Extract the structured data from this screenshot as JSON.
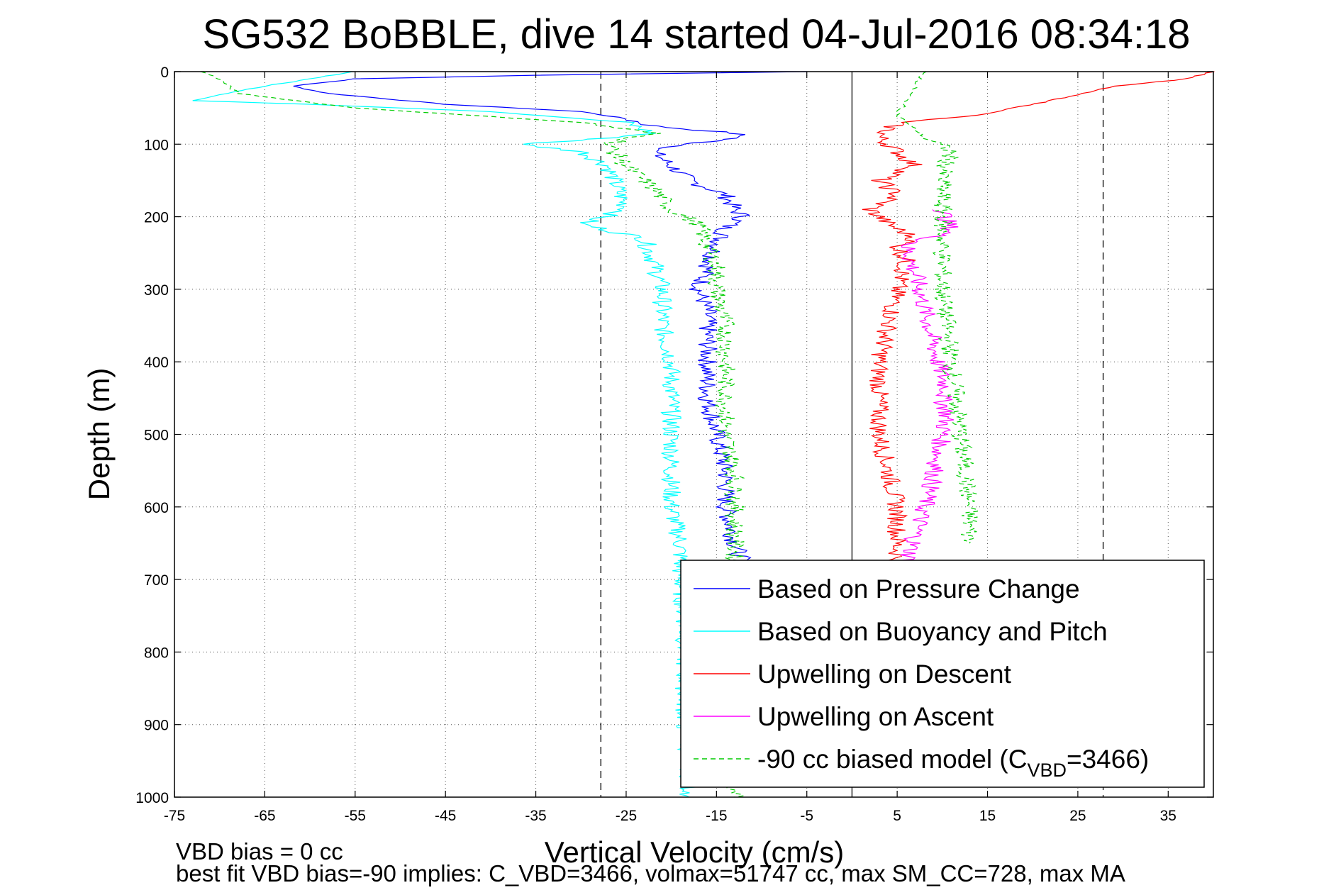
{
  "chart_data": {
    "type": "line",
    "title": "SG532 BoBBLE, dive 14 started 04-Jul-2016 08:34:18",
    "xlabel": "Vertical Velocity (cm/s)",
    "ylabel": "Depth (m)",
    "xlim": [
      -75,
      40
    ],
    "ylim": [
      0,
      1000
    ],
    "y_reversed": true,
    "grid": true,
    "legend_position": "bottom-right",
    "x_ticks": [
      "-75",
      "-65",
      "-55",
      "-45",
      "-35",
      "-25",
      "-15",
      "-5",
      "5",
      "15",
      "25",
      "35"
    ],
    "x_tick_values": [
      -75,
      -65,
      -55,
      -45,
      -35,
      -25,
      -15,
      -5,
      5,
      15,
      25,
      35
    ],
    "y_ticks": [
      "0",
      "100",
      "200",
      "300",
      "400",
      "500",
      "600",
      "700",
      "800",
      "900",
      "1000"
    ],
    "y_tick_values": [
      0,
      100,
      200,
      300,
      400,
      500,
      600,
      700,
      800,
      900,
      1000
    ],
    "vertical_refs": [
      {
        "x": -27.8,
        "style": "dashed"
      },
      {
        "x": 0,
        "style": "solid"
      },
      {
        "x": 27.8,
        "style": "dashed"
      }
    ],
    "series": [
      {
        "name": "Based on Pressure Change",
        "color": "#0000ff",
        "dash": "",
        "depth": [
          0,
          5,
          10,
          20,
          30,
          45,
          55,
          65,
          75,
          85,
          90,
          95,
          100,
          110,
          130,
          150,
          170,
          190,
          200,
          215,
          240,
          270,
          300,
          330,
          360,
          400,
          450,
          500,
          550,
          600,
          650,
          680
        ],
        "x": [
          -5,
          -35,
          -55,
          -62,
          -58,
          -45,
          -30,
          -25,
          -22,
          -13,
          -12,
          -15,
          -18,
          -22,
          -20,
          -18,
          -14,
          -13,
          -12,
          -14,
          -15,
          -16,
          -17,
          -16,
          -16,
          -16,
          -16,
          -15,
          -14,
          -14,
          -13,
          -12
        ]
      },
      {
        "name": "Based on Buoyancy and Pitch",
        "color": "#00ffff",
        "dash": "",
        "depth": [
          0,
          20,
          40,
          45,
          55,
          70,
          85,
          95,
          100,
          110,
          130,
          160,
          190,
          210,
          230,
          260,
          300,
          350,
          400,
          450,
          500,
          550,
          600,
          650,
          700,
          750,
          800,
          850,
          900,
          950,
          1000
        ],
        "x": [
          -55,
          -65,
          -73,
          -60,
          -40,
          -25,
          -22,
          -30,
          -37,
          -30,
          -27,
          -26,
          -25,
          -30,
          -23,
          -22,
          -21,
          -21,
          -20,
          -20,
          -20,
          -20,
          -20,
          -19,
          -19,
          -18.5,
          -18.5,
          -18.5,
          -18.5,
          -18,
          -18
        ]
      },
      {
        "name": "Upwelling on Descent",
        "color": "#ff0000",
        "dash": "",
        "depth": [
          0,
          10,
          20,
          40,
          60,
          70,
          90,
          110,
          130,
          150,
          170,
          190,
          210,
          230,
          240,
          260,
          300,
          350,
          400,
          450,
          500,
          550,
          600,
          650,
          700
        ],
        "x": [
          40,
          37,
          29,
          22,
          14,
          5,
          3,
          5,
          7,
          3,
          5,
          2,
          4,
          7,
          5,
          6,
          5,
          4,
          3,
          3,
          3,
          4,
          5,
          5,
          5
        ]
      },
      {
        "name": "Upwelling on Ascent",
        "color": "#ff00ff",
        "dash": "",
        "depth": [
          190,
          220,
          240,
          260,
          300,
          350,
          400,
          440,
          450,
          470,
          500,
          530,
          560,
          600,
          640,
          680
        ],
        "x": [
          10,
          11,
          6,
          6.5,
          7.5,
          8.5,
          9.5,
          10.5,
          10,
          10.5,
          10,
          9.5,
          9,
          8,
          7,
          6
        ]
      },
      {
        "name": "-90 cc biased model (C_VBD=3466)",
        "color": "#00cc00",
        "dash": "7,5",
        "depth": [
          0,
          10,
          30,
          50,
          70,
          85,
          100,
          130,
          160,
          190,
          210,
          240,
          270,
          300,
          350,
          400,
          450,
          500,
          550,
          600,
          650,
          700,
          800,
          900,
          1000
        ],
        "x": [
          -72,
          -70,
          -68,
          -55,
          -30,
          -22,
          -27,
          -25,
          -22,
          -20,
          -17,
          -16,
          -15,
          -15,
          -14,
          -14,
          -14,
          -14,
          -13,
          -13,
          -13,
          -13,
          -13,
          -13,
          -13
        ]
      },
      {
        "name": "",
        "color": "#00cc00",
        "dash": "7,5",
        "depth": [
          0,
          40,
          60,
          90,
          110,
          140,
          180,
          240,
          300,
          400,
          500,
          600,
          650
        ],
        "x": [
          8,
          6,
          5,
          8,
          11,
          10,
          10,
          10,
          10,
          11,
          12,
          13,
          13
        ]
      }
    ],
    "legend_entries": [
      "Based on Pressure Change",
      "Based on Buoyancy and Pitch",
      "Upwelling on Descent",
      "Upwelling on Ascent",
      "-90 cc biased model (C",
      "VBD",
      "=3466)"
    ]
  },
  "footer": {
    "line1": "VBD bias = 0 cc",
    "line2": "best fit VBD bias=-90 implies: C_VBD=3466, volmax=51747 cc, max SM_CC=728, max MA"
  }
}
